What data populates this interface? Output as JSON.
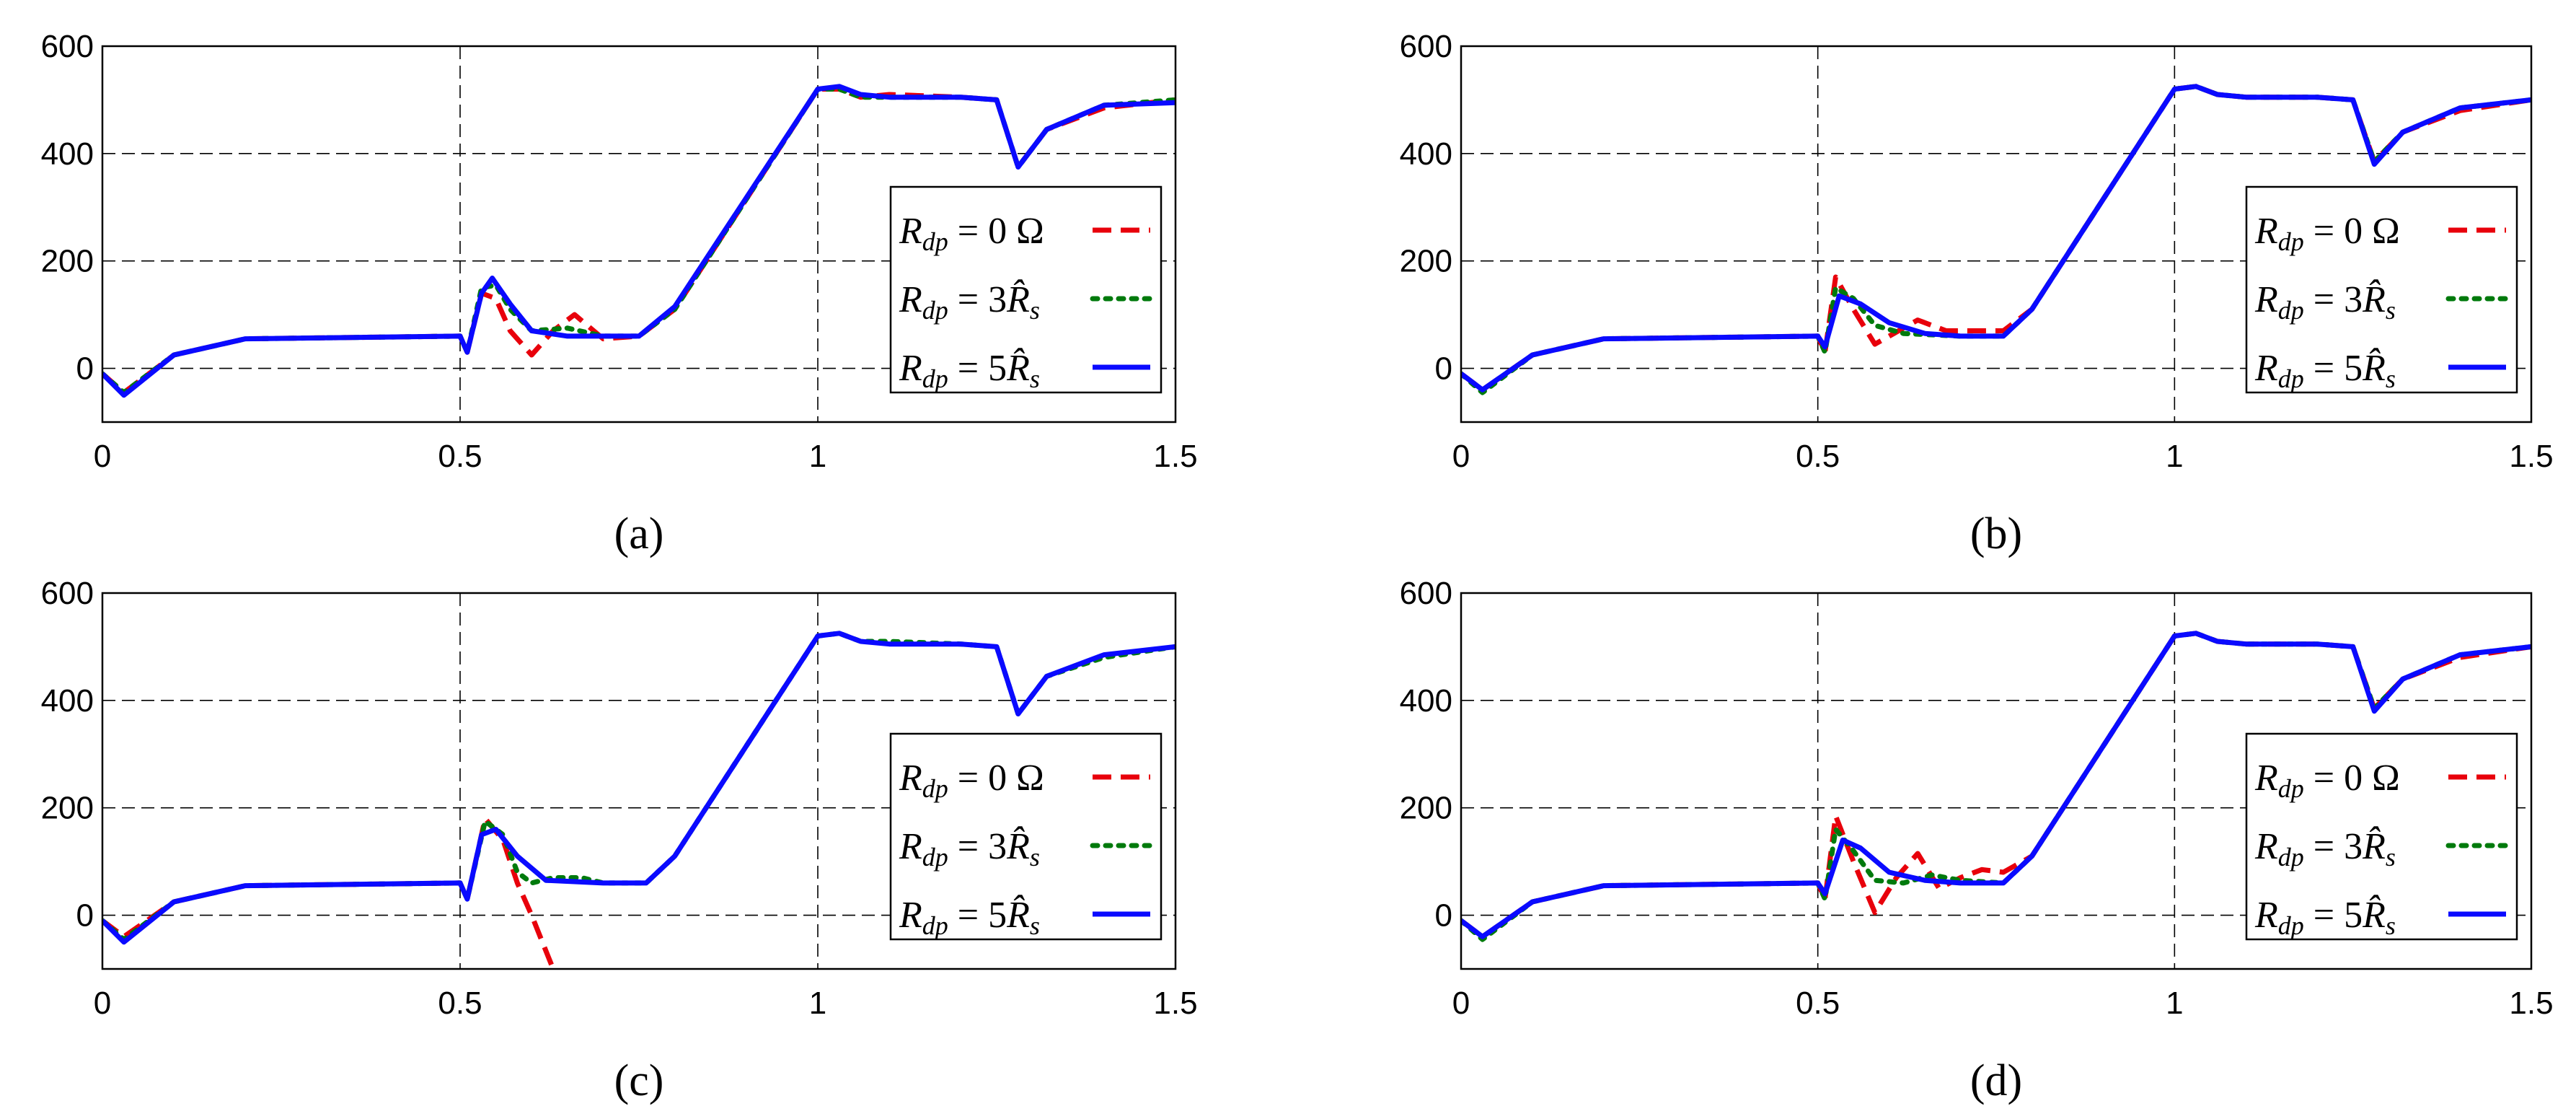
{
  "chart_data": [
    {
      "type": "line",
      "caption": "(a)",
      "xlim": [
        0,
        1.5
      ],
      "ylim": [
        -100,
        600
      ],
      "xticks": [
        "0",
        "0.5",
        "1",
        "1.5"
      ],
      "yticks": [
        "0",
        "200",
        "400",
        "600"
      ],
      "grid": true,
      "legend_position": "right",
      "series": [
        {
          "name": "Rdp = 0 Ω",
          "color": "#e8000b",
          "style": "dashed",
          "x": [
            0,
            0.03,
            0.1,
            0.2,
            0.5,
            0.51,
            0.53,
            0.55,
            0.57,
            0.6,
            0.63,
            0.66,
            0.7,
            0.75,
            0.8,
            1.0,
            1.03,
            1.06,
            1.1,
            1.2,
            1.25,
            1.28,
            1.32,
            1.4,
            1.5
          ],
          "y": [
            -10,
            -45,
            25,
            55,
            60,
            30,
            140,
            130,
            70,
            25,
            70,
            100,
            55,
            60,
            110,
            520,
            520,
            505,
            510,
            505,
            500,
            375,
            445,
            485,
            500
          ]
        },
        {
          "name": "Rdp = 3R̂s",
          "color": "#007a0c",
          "style": "dotted",
          "x": [
            0,
            0.03,
            0.1,
            0.2,
            0.5,
            0.51,
            0.53,
            0.55,
            0.57,
            0.6,
            0.65,
            0.7,
            0.75,
            0.8,
            1.0,
            1.03,
            1.06,
            1.1,
            1.2,
            1.25,
            1.28,
            1.32,
            1.4,
            1.5
          ],
          "y": [
            -10,
            -45,
            25,
            55,
            60,
            30,
            150,
            155,
            110,
            70,
            75,
            60,
            60,
            110,
            520,
            520,
            505,
            505,
            505,
            500,
            375,
            445,
            490,
            500
          ]
        },
        {
          "name": "Rdp = 5R̂s",
          "color": "#0a0aff",
          "style": "solid",
          "x": [
            0,
            0.03,
            0.1,
            0.2,
            0.5,
            0.51,
            0.53,
            0.545,
            0.57,
            0.6,
            0.65,
            0.7,
            0.75,
            0.8,
            1.0,
            1.03,
            1.06,
            1.1,
            1.2,
            1.25,
            1.28,
            1.32,
            1.4,
            1.5
          ],
          "y": [
            -10,
            -50,
            25,
            55,
            60,
            30,
            140,
            168,
            120,
            70,
            60,
            60,
            60,
            115,
            520,
            525,
            510,
            505,
            505,
            500,
            375,
            445,
            490,
            495
          ]
        }
      ]
    },
    {
      "type": "line",
      "caption": "(b)",
      "xlim": [
        0,
        1.5
      ],
      "ylim": [
        -100,
        600
      ],
      "xticks": [
        "0",
        "0.5",
        "1",
        "1.5"
      ],
      "yticks": [
        "0",
        "200",
        "400",
        "600"
      ],
      "grid": true,
      "legend_position": "right",
      "series": [
        {
          "name": "Rdp = 0 Ω",
          "color": "#e8000b",
          "style": "dashed",
          "x": [
            0,
            0.03,
            0.1,
            0.2,
            0.5,
            0.51,
            0.525,
            0.55,
            0.58,
            0.6,
            0.64,
            0.68,
            0.72,
            0.76,
            0.8,
            1.0,
            1.03,
            1.06,
            1.1,
            1.2,
            1.25,
            1.28,
            1.32,
            1.4,
            1.5
          ],
          "y": [
            -10,
            -40,
            25,
            55,
            60,
            30,
            170,
            110,
            45,
            60,
            90,
            70,
            70,
            70,
            110,
            520,
            525,
            510,
            505,
            505,
            500,
            385,
            440,
            480,
            500
          ]
        },
        {
          "name": "Rdp = 3R̂s",
          "color": "#007a0c",
          "style": "dotted",
          "x": [
            0,
            0.03,
            0.1,
            0.2,
            0.5,
            0.51,
            0.525,
            0.55,
            0.58,
            0.62,
            0.7,
            0.76,
            0.8,
            1.0,
            1.03,
            1.06,
            1.1,
            1.2,
            1.25,
            1.28,
            1.32,
            1.4,
            1.5
          ],
          "y": [
            -10,
            -45,
            25,
            55,
            60,
            30,
            150,
            130,
            80,
            65,
            60,
            60,
            110,
            520,
            525,
            510,
            505,
            505,
            500,
            385,
            440,
            485,
            500
          ]
        },
        {
          "name": "Rdp = 5R̂s",
          "color": "#0a0aff",
          "style": "solid",
          "x": [
            0,
            0.03,
            0.1,
            0.2,
            0.5,
            0.51,
            0.53,
            0.56,
            0.6,
            0.65,
            0.7,
            0.76,
            0.8,
            1.0,
            1.03,
            1.06,
            1.1,
            1.2,
            1.25,
            1.28,
            1.32,
            1.4,
            1.5
          ],
          "y": [
            -10,
            -40,
            25,
            55,
            60,
            40,
            135,
            120,
            85,
            65,
            60,
            60,
            110,
            520,
            525,
            510,
            505,
            505,
            500,
            380,
            440,
            485,
            500
          ]
        }
      ]
    },
    {
      "type": "line",
      "caption": "(c)",
      "xlim": [
        0,
        1.5
      ],
      "ylim": [
        -100,
        600
      ],
      "xticks": [
        "0",
        "0.5",
        "1",
        "1.5"
      ],
      "yticks": [
        "0",
        "200",
        "400",
        "600"
      ],
      "grid": true,
      "legend_position": "right",
      "series": [
        {
          "name": "Rdp = 0 Ω",
          "color": "#e8000b",
          "style": "dashed",
          "x": [
            0,
            0.03,
            0.1,
            0.2,
            0.5,
            0.51,
            0.535,
            0.56,
            0.58,
            0.6,
            0.615,
            0.63
          ],
          "y": [
            -10,
            -40,
            25,
            55,
            60,
            30,
            180,
            140,
            60,
            0,
            -50,
            -100
          ]
        },
        {
          "name": "Rdp = 3R̂s",
          "color": "#007a0c",
          "style": "dotted",
          "x": [
            0,
            0.03,
            0.1,
            0.2,
            0.5,
            0.51,
            0.535,
            0.56,
            0.58,
            0.6,
            0.63,
            0.67,
            0.7,
            0.76,
            0.8,
            1.0,
            1.03,
            1.06,
            1.1,
            1.2,
            1.25,
            1.28,
            1.32,
            1.4,
            1.5
          ],
          "y": [
            -10,
            -45,
            25,
            55,
            60,
            30,
            175,
            150,
            80,
            60,
            70,
            70,
            60,
            60,
            110,
            520,
            525,
            510,
            510,
            505,
            500,
            375,
            445,
            480,
            500
          ]
        },
        {
          "name": "Rdp = 5R̂s",
          "color": "#0a0aff",
          "style": "solid",
          "x": [
            0,
            0.03,
            0.1,
            0.2,
            0.5,
            0.51,
            0.53,
            0.55,
            0.58,
            0.62,
            0.7,
            0.76,
            0.8,
            1.0,
            1.03,
            1.06,
            1.1,
            1.2,
            1.25,
            1.28,
            1.32,
            1.4,
            1.5
          ],
          "y": [
            -10,
            -50,
            25,
            55,
            60,
            30,
            150,
            160,
            110,
            65,
            60,
            60,
            110,
            520,
            525,
            510,
            505,
            505,
            500,
            375,
            445,
            485,
            500
          ]
        }
      ]
    },
    {
      "type": "line",
      "caption": "(d)",
      "xlim": [
        0,
        1.5
      ],
      "ylim": [
        -100,
        600
      ],
      "xticks": [
        "0",
        "0.5",
        "1",
        "1.5"
      ],
      "yticks": [
        "0",
        "200",
        "400",
        "600"
      ],
      "grid": true,
      "legend_position": "right",
      "series": [
        {
          "name": "Rdp = 0 Ω",
          "color": "#e8000b",
          "style": "dashed",
          "x": [
            0,
            0.03,
            0.1,
            0.2,
            0.5,
            0.51,
            0.525,
            0.55,
            0.58,
            0.61,
            0.64,
            0.67,
            0.7,
            0.73,
            0.76,
            0.8,
            1.0,
            1.03,
            1.06,
            1.1,
            1.2,
            1.25,
            1.28,
            1.32,
            1.4,
            1.5
          ],
          "y": [
            -10,
            -40,
            25,
            55,
            60,
            30,
            185,
            100,
            5,
            70,
            115,
            50,
            70,
            85,
            80,
            110,
            520,
            525,
            510,
            505,
            505,
            500,
            385,
            440,
            480,
            500
          ]
        },
        {
          "name": "Rdp = 3R̂s",
          "color": "#007a0c",
          "style": "dotted",
          "x": [
            0,
            0.03,
            0.1,
            0.2,
            0.5,
            0.51,
            0.525,
            0.55,
            0.58,
            0.62,
            0.66,
            0.7,
            0.76,
            0.8,
            1.0,
            1.03,
            1.06,
            1.1,
            1.2,
            1.25,
            1.28,
            1.32,
            1.4,
            1.5
          ],
          "y": [
            -10,
            -45,
            25,
            55,
            60,
            30,
            160,
            120,
            65,
            60,
            75,
            65,
            60,
            110,
            520,
            525,
            510,
            505,
            505,
            500,
            385,
            440,
            485,
            500
          ]
        },
        {
          "name": "Rdp = 5R̂s",
          "color": "#0a0aff",
          "style": "solid",
          "x": [
            0,
            0.03,
            0.1,
            0.2,
            0.5,
            0.51,
            0.535,
            0.56,
            0.6,
            0.65,
            0.7,
            0.76,
            0.8,
            1.0,
            1.03,
            1.06,
            1.1,
            1.2,
            1.25,
            1.28,
            1.32,
            1.4,
            1.5
          ],
          "y": [
            -10,
            -40,
            25,
            55,
            60,
            40,
            140,
            125,
            80,
            65,
            60,
            60,
            110,
            520,
            525,
            510,
            505,
            505,
            500,
            380,
            440,
            485,
            500
          ]
        }
      ]
    }
  ]
}
